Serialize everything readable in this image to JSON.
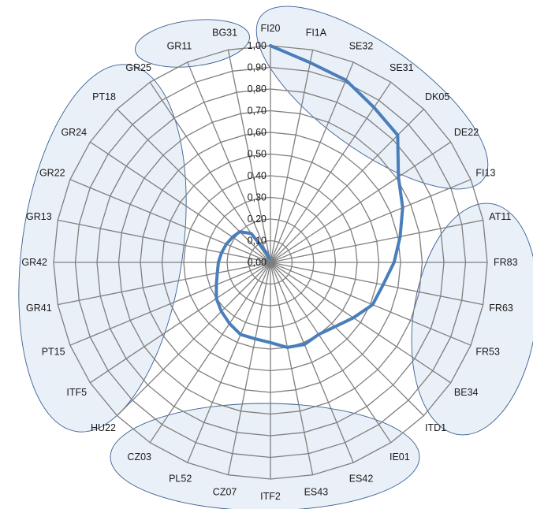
{
  "chart_data": {
    "type": "radar",
    "title": "",
    "categories": [
      "FI20",
      "FI1A",
      "SE32",
      "SE31",
      "DK05",
      "DE22",
      "FI13",
      "AT11",
      "FR83",
      "FR63",
      "FR53",
      "BE34",
      "ITD1",
      "IE01",
      "ES42",
      "ES43",
      "ITF2",
      "CZ07",
      "PL52",
      "CZ03",
      "HU22",
      "ITF5",
      "PT15",
      "GR41",
      "GR42",
      "GR13",
      "GR22",
      "GR24",
      "PT18",
      "GR25",
      "GR11",
      "BG31"
    ],
    "tick_labels": [
      "0,00",
      "0,10",
      "0,20",
      "0,30",
      "0,40",
      "0,50",
      "0,60",
      "0,70",
      "0,80",
      "0,90",
      "1,00"
    ],
    "rlim": [
      0,
      1
    ],
    "grid": true,
    "legend": "none",
    "series": [
      {
        "values": [
          1.0,
          0.94,
          0.91,
          0.86,
          0.83,
          0.71,
          0.66,
          0.61,
          0.57,
          0.53,
          0.51,
          0.46,
          0.42,
          0.4,
          0.41,
          0.4,
          0.37,
          0.36,
          0.36,
          0.34,
          0.32,
          0.3,
          0.27,
          0.25,
          0.24,
          0.23,
          0.22,
          0.21,
          0.2,
          0.16,
          0.05,
          0.02
        ],
        "color": "#4a7ebb"
      }
    ],
    "highlight_groups": [
      [
        "FI20",
        "FI1A",
        "SE32",
        "SE31",
        "DK05",
        "DE22",
        "FI13"
      ],
      [
        "AT11",
        "FR83",
        "FR63",
        "FR53",
        "BE34",
        "ITD1"
      ],
      [
        "IE01",
        "ES42",
        "ES43",
        "ITF2",
        "CZ07",
        "PL52",
        "CZ03"
      ],
      [
        "HU22",
        "ITF5",
        "PT15",
        "GR41",
        "GR42",
        "GR13",
        "GR22",
        "GR24",
        "PT18",
        "GR25"
      ],
      [
        "GR11",
        "BG31"
      ]
    ],
    "colors": {
      "grid": "#7f7f7f",
      "cluster_fill": "#dce6f1",
      "cluster_stroke": "#3a5f95",
      "series": "#4a7ebb"
    }
  }
}
